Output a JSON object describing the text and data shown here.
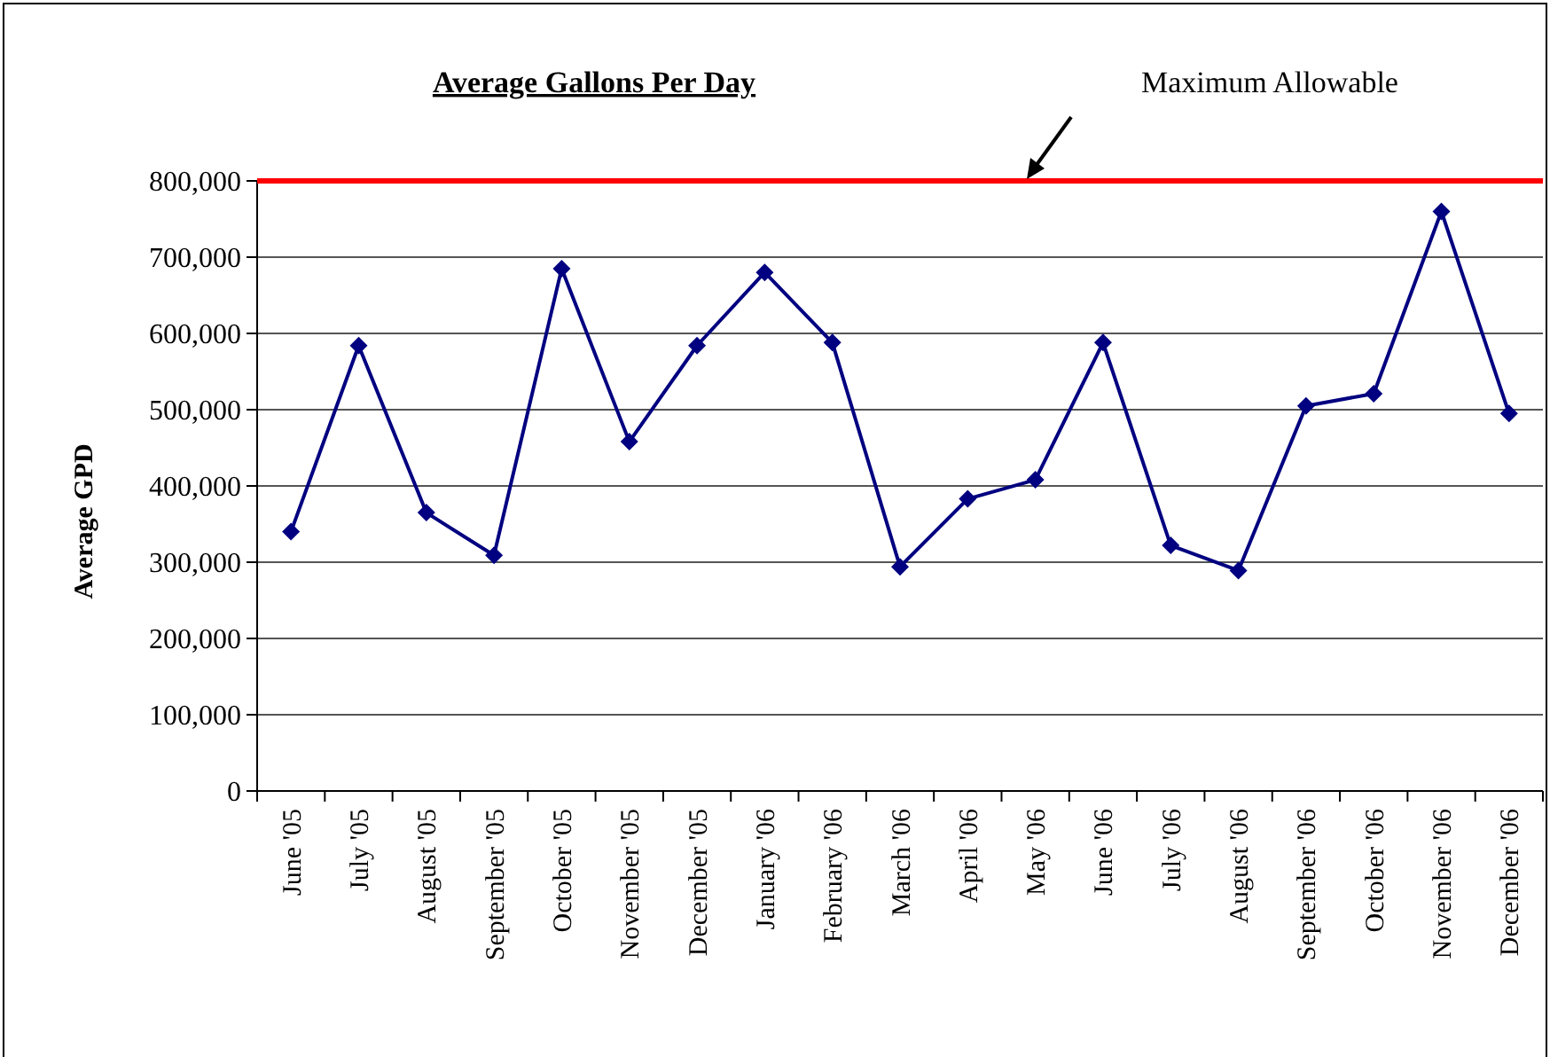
{
  "chart_data": {
    "type": "line",
    "title": "Average Gallons Per Day",
    "ylabel": "Average GPD",
    "categories": [
      "June '05",
      "July '05",
      "August '05",
      "September '05",
      "October '05",
      "November '05",
      "December '05",
      "January '06",
      "February '06",
      "March '06",
      "April '06",
      "May '06",
      "June '06",
      "July '06",
      "August '06",
      "September '06",
      "October '06",
      "November '06",
      "December '06"
    ],
    "series": [
      {
        "color": "#000080",
        "values": [
          340000,
          584000,
          365000,
          309000,
          685000,
          458000,
          584000,
          680000,
          588000,
          294000,
          383000,
          408000,
          588000,
          322000,
          289000,
          505000,
          521000,
          760000,
          495000
        ]
      }
    ],
    "ylim": [
      0,
      800000
    ],
    "yticks": [
      {
        "value": 0,
        "label": "0"
      },
      {
        "value": 100000,
        "label": "100,000"
      },
      {
        "value": 200000,
        "label": "200,000"
      },
      {
        "value": 300000,
        "label": "300,000"
      },
      {
        "value": 400000,
        "label": "400,000"
      },
      {
        "value": 500000,
        "label": "500,000"
      },
      {
        "value": 600000,
        "label": "600,000"
      },
      {
        "value": 700000,
        "label": "700,000"
      },
      {
        "value": 800000,
        "label": "800,000"
      }
    ],
    "grid": "y",
    "marker": "diamond",
    "line_style": "solid",
    "ref_lines": [
      {
        "axis": "y",
        "value": 800000,
        "label": "Maximum Allowable",
        "color": "#ff0000"
      }
    ]
  }
}
